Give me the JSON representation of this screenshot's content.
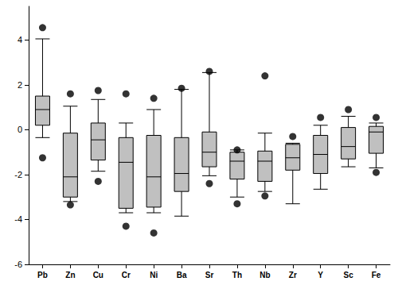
{
  "chart_data": {
    "type": "boxplot",
    "categories": [
      "Pb",
      "Zn",
      "Cu",
      "Cr",
      "Ni",
      "Ba",
      "Sr",
      "Th",
      "Nb",
      "Zr",
      "Y",
      "Sc",
      "Fe"
    ],
    "values": [
      [
        -0.35,
        0.2,
        0.9,
        1.5,
        4.05
      ],
      [
        -3.2,
        -3.0,
        -2.1,
        -0.15,
        1.05
      ],
      [
        -1.85,
        -1.35,
        -0.45,
        0.3,
        1.35
      ],
      [
        -3.7,
        -3.5,
        -1.45,
        -0.35,
        0.3
      ],
      [
        -3.7,
        -3.45,
        -2.1,
        -0.25,
        0.9
      ],
      [
        -3.85,
        -2.75,
        -1.95,
        -0.35,
        1.8
      ],
      [
        -2.05,
        -1.65,
        -1.0,
        -0.1,
        2.55
      ],
      [
        -3.0,
        -2.2,
        -1.4,
        -1.0,
        -0.9
      ],
      [
        -2.75,
        -2.3,
        -1.4,
        -0.95,
        -0.15
      ],
      [
        -3.3,
        -1.8,
        -1.25,
        -0.65,
        -0.6
      ],
      [
        -2.65,
        -1.95,
        -1.1,
        -0.25,
        0.2
      ],
      [
        -1.65,
        -1.3,
        -0.75,
        0.1,
        0.6
      ],
      [
        -1.7,
        -1.05,
        -0.1,
        0.15,
        0.3
      ]
    ],
    "outliers": [
      [
        4.55,
        -1.25
      ],
      [
        1.6,
        -3.35
      ],
      [
        1.75,
        -2.3
      ],
      [
        1.6,
        -4.3
      ],
      [
        1.4,
        -4.6
      ],
      [
        1.85
      ],
      [
        2.6,
        -2.4
      ],
      [
        -0.9,
        -3.3
      ],
      [
        2.4,
        -2.95
      ],
      [
        -0.3
      ],
      [
        0.55
      ],
      [
        0.9
      ],
      [
        0.55,
        -1.9
      ]
    ],
    "color": "#c0c0c0",
    "marker": "circle",
    "ylim": [
      -6,
      5.5
    ],
    "yticks": [
      -6,
      -4,
      -2,
      0,
      2,
      4
    ],
    "grid": false
  }
}
